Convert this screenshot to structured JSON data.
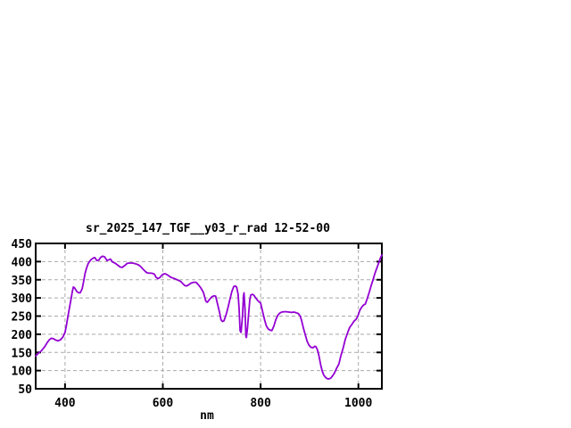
{
  "chart": {
    "colors": {
      "line": "#9400d3",
      "grid": "#a9a9a9",
      "axis": "#000000",
      "background": "#ffffff",
      "text": "#000000"
    }
  },
  "chart_data": {
    "type": "line",
    "title": "sr_2025_147_TGF__y03_r_rad 12-52-00",
    "xlabel": "nm",
    "ylabel": "",
    "xlim": [
      340,
      1048
    ],
    "ylim": [
      50,
      450
    ],
    "x_ticks": [
      400,
      600,
      800,
      1000
    ],
    "y_ticks": [
      50,
      100,
      150,
      200,
      250,
      300,
      350,
      400,
      450
    ],
    "grid": true,
    "legend": "none",
    "series": [
      {
        "color": "#9400d3",
        "x": [
          340,
          345,
          352,
          358,
          364,
          368,
          372,
          376,
          381,
          386,
          391,
          396,
          400,
          403,
          406,
          409,
          412,
          415,
          417,
          420,
          424,
          428,
          431,
          435,
          438,
          441,
          444,
          447,
          450,
          453,
          458,
          461,
          465,
          469,
          473,
          477,
          481,
          486,
          490,
          493,
          497,
          502,
          507,
          513,
          517,
          522,
          527,
          532,
          538,
          544,
          550,
          555,
          559,
          564,
          568,
          573,
          578,
          583,
          586,
          590,
          594,
          598,
          602,
          606,
          611,
          616,
          620,
          626,
          631,
          637,
          641,
          645,
          649,
          654,
          658,
          663,
          668,
          673,
          678,
          683,
          688,
          691,
          695,
          700,
          705,
          708,
          712,
          716,
          719,
          722,
          725,
          729,
          733,
          737,
          741,
          745,
          748,
          751,
          754,
          756,
          758,
          760,
          763,
          765,
          766,
          768,
          770,
          771,
          773,
          776,
          778,
          780,
          783,
          786,
          790,
          794,
          798,
          800,
          804,
          808,
          812,
          816,
          820,
          823,
          827,
          831,
          835,
          839,
          843,
          848,
          853,
          858,
          863,
          868,
          873,
          877,
          881,
          884,
          888,
          891,
          895,
          899,
          903,
          907,
          911,
          913,
          916,
          919,
          923,
          926,
          929,
          933,
          936,
          940,
          944,
          948,
          951,
          955,
          960,
          964,
          969,
          973,
          978,
          982,
          987,
          991,
          995,
          999,
          1003,
          1007,
          1011,
          1014,
          1018,
          1022,
          1026,
          1030,
          1034,
          1038,
          1042,
          1045,
          1048
        ],
        "y": [
          140,
          147,
          155,
          165,
          178,
          185,
          189,
          188,
          184,
          182,
          185,
          193,
          205,
          225,
          250,
          272,
          295,
          318,
          330,
          327,
          318,
          314,
          314,
          325,
          345,
          368,
          382,
          393,
          400,
          405,
          410,
          411,
          403,
          404,
          412,
          415,
          413,
          403,
          405,
          407,
          399,
          396,
          391,
          385,
          384,
          389,
          395,
          396,
          396,
          394,
          391,
          386,
          380,
          373,
          369,
          368,
          368,
          365,
          357,
          353,
          356,
          363,
          366,
          366,
          362,
          357,
          355,
          352,
          349,
          345,
          339,
          334,
          333,
          337,
          341,
          343,
          343,
          336,
          327,
          315,
          291,
          288,
          295,
          303,
          306,
          305,
          283,
          260,
          240,
          235,
          237,
          252,
          272,
          295,
          317,
          331,
          333,
          330,
          310,
          270,
          210,
          205,
          250,
          305,
          314,
          270,
          195,
          191,
          215,
          262,
          295,
          308,
          310,
          308,
          300,
          293,
          288,
          286,
          263,
          240,
          222,
          214,
          211,
          210,
          222,
          240,
          252,
          258,
          261,
          262,
          262,
          261,
          260,
          261,
          259,
          257,
          250,
          237,
          215,
          200,
          181,
          170,
          164,
          163,
          167,
          166,
          158,
          143,
          115,
          99,
          88,
          81,
          78,
          77,
          80,
          87,
          93,
          105,
          118,
          140,
          163,
          185,
          204,
          218,
          228,
          236,
          241,
          250,
          266,
          275,
          281,
          283,
          298,
          315,
          333,
          350,
          368,
          383,
          398,
          410,
          418
        ]
      }
    ]
  }
}
